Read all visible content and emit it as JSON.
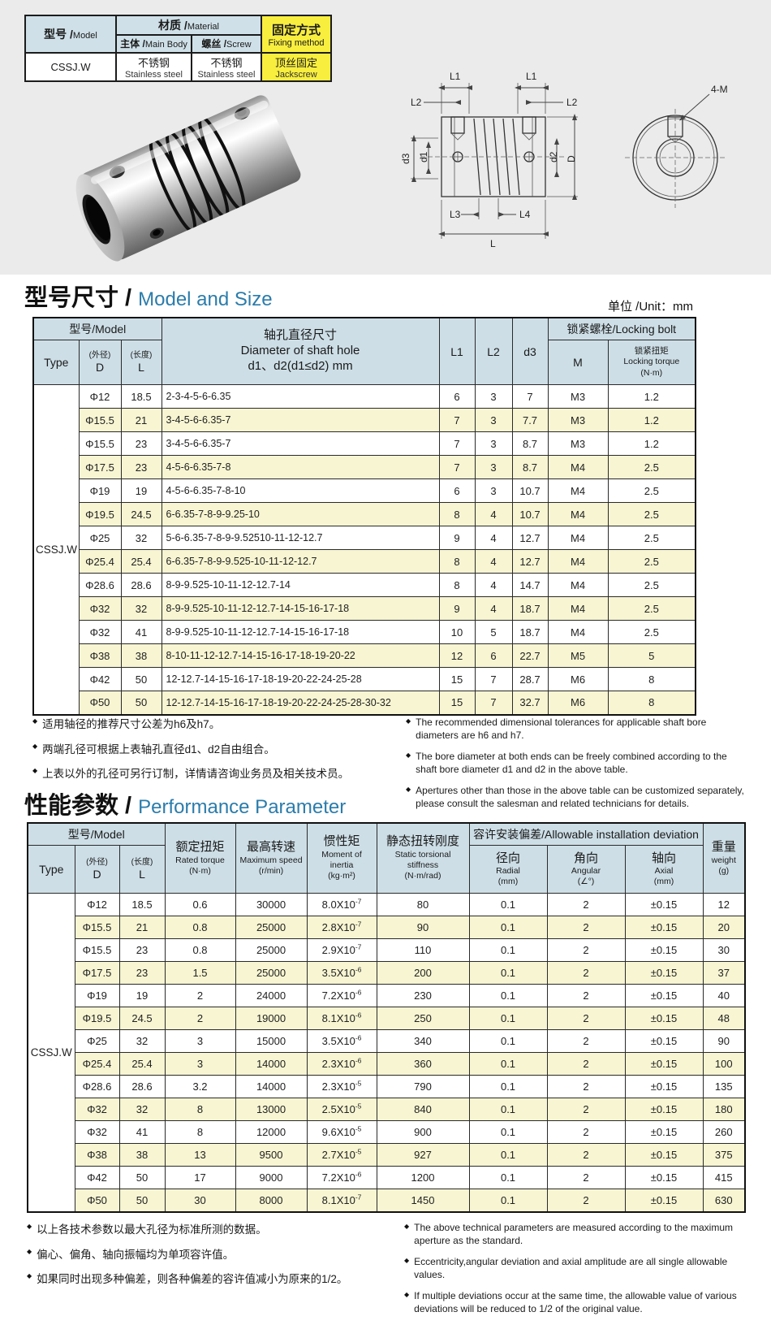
{
  "colors": {
    "top_band_bg": "#ebebeb",
    "table_header_bg": "#cddee6",
    "row_alt_bg": "#f7f5d2",
    "highlight_yellow": "#f8ee3e",
    "title_accent_blue": "#2b7cab"
  },
  "spec_table": {
    "model_header_zh": "型号 /",
    "model_header_en": "Model",
    "material_header_zh": "材质 /",
    "material_header_en": "Material",
    "main_body_header_zh": "主体 /",
    "main_body_header_en": "Main Body",
    "screw_header_zh": "螺丝 /",
    "screw_header_en": "Screw",
    "fixing_header_zh": "固定方式",
    "fixing_header_en": "Fixing method",
    "model_value": "CSSJ.W",
    "main_body_zh": "不锈钢",
    "main_body_en": "Stainless steel",
    "screw_zh": "不锈钢",
    "screw_en": "Stainless steel",
    "fixing_zh": "顶丝固定",
    "fixing_en": "Jackscrew"
  },
  "drawing": {
    "front_labels": {
      "l1_left": "L1",
      "l2_left": "L2",
      "l1_right": "L1",
      "l2_right": "L2",
      "d3": "d3",
      "d1": "d1",
      "d2": "d2",
      "d_outer": "D",
      "l3": "L3",
      "l4": "L4",
      "l_total": "L"
    },
    "side_label": "4-M"
  },
  "size_section": {
    "title_zh": "型号尺寸 /",
    "title_en": "Model and Size",
    "unit": "单位 /Unit：mm",
    "header": {
      "model_group": "型号/Model",
      "type": "Type",
      "d_sub": "(外径)",
      "d": "D",
      "l_sub": "(长度)",
      "l": "L",
      "bore_zh": "轴孔直径尺寸",
      "bore_en": "Diameter of shaft hole",
      "bore_range": "d1、d2(d1≤d2) mm",
      "l1": "L1",
      "l2": "L2",
      "d3": "d3",
      "locking_group": "锁紧螺栓/Locking bolt",
      "m": "M",
      "torque_zh": "锁紧扭矩",
      "torque_en": "Locking torque",
      "torque_unit": "(N·m)"
    },
    "type_value": "CSSJ.W",
    "col_keys": [
      "d",
      "l",
      "bore",
      "l1",
      "l2",
      "d3",
      "m",
      "torque"
    ],
    "rows": [
      {
        "d": "Φ12",
        "l": "18.5",
        "bore": "2-3-4-5-6-6.35",
        "l1": "6",
        "l2": "3",
        "d3": "7",
        "m": "M3",
        "torque": "1.2"
      },
      {
        "d": "Φ15.5",
        "l": "21",
        "bore": "3-4-5-6-6.35-7",
        "l1": "7",
        "l2": "3",
        "d3": "7.7",
        "m": "M3",
        "torque": "1.2"
      },
      {
        "d": "Φ15.5",
        "l": "23",
        "bore": "3-4-5-6-6.35-7",
        "l1": "7",
        "l2": "3",
        "d3": "8.7",
        "m": "M3",
        "torque": "1.2"
      },
      {
        "d": "Φ17.5",
        "l": "23",
        "bore": "4-5-6-6.35-7-8",
        "l1": "7",
        "l2": "3",
        "d3": "8.7",
        "m": "M4",
        "torque": "2.5"
      },
      {
        "d": "Φ19",
        "l": "19",
        "bore": "4-5-6-6.35-7-8-10",
        "l1": "6",
        "l2": "3",
        "d3": "10.7",
        "m": "M4",
        "torque": "2.5"
      },
      {
        "d": "Φ19.5",
        "l": "24.5",
        "bore": "6-6.35-7-8-9-9.25-10",
        "l1": "8",
        "l2": "4",
        "d3": "10.7",
        "m": "M4",
        "torque": "2.5"
      },
      {
        "d": "Φ25",
        "l": "32",
        "bore": "5-6-6.35-7-8-9-9.52510-11-12-12.7",
        "l1": "9",
        "l2": "4",
        "d3": "12.7",
        "m": "M4",
        "torque": "2.5"
      },
      {
        "d": "Φ25.4",
        "l": "25.4",
        "bore": "6-6.35-7-8-9-9.525-10-11-12-12.7",
        "l1": "8",
        "l2": "4",
        "d3": "12.7",
        "m": "M4",
        "torque": "2.5"
      },
      {
        "d": "Φ28.6",
        "l": "28.6",
        "bore": "8-9-9.525-10-11-12-12.7-14",
        "l1": "8",
        "l2": "4",
        "d3": "14.7",
        "m": "M4",
        "torque": "2.5"
      },
      {
        "d": "Φ32",
        "l": "32",
        "bore": "8-9-9.525-10-11-12-12.7-14-15-16-17-18",
        "l1": "9",
        "l2": "4",
        "d3": "18.7",
        "m": "M4",
        "torque": "2.5"
      },
      {
        "d": "Φ32",
        "l": "41",
        "bore": "8-9-9.525-10-11-12-12.7-14-15-16-17-18",
        "l1": "10",
        "l2": "5",
        "d3": "18.7",
        "m": "M4",
        "torque": "2.5"
      },
      {
        "d": "Φ38",
        "l": "38",
        "bore": "8-10-11-12-12.7-14-15-16-17-18-19-20-22",
        "l1": "12",
        "l2": "6",
        "d3": "22.7",
        "m": "M5",
        "torque": "5"
      },
      {
        "d": "Φ42",
        "l": "50",
        "bore": "12-12.7-14-15-16-17-18-19-20-22-24-25-28",
        "l1": "15",
        "l2": "7",
        "d3": "28.7",
        "m": "M6",
        "torque": "8"
      },
      {
        "d": "Φ50",
        "l": "50",
        "bore": "12-12.7-14-15-16-17-18-19-20-22-24-25-28-30-32",
        "l1": "15",
        "l2": "7",
        "d3": "32.7",
        "m": "M6",
        "torque": "8"
      }
    ],
    "notes_zh": [
      "适用轴径的推荐尺寸公差为h6及h7。",
      "两端孔径可根据上表轴孔直径d1、d2自由组合。",
      "上表以外的孔径可另行订制，详情请咨询业务员及相关技术员。"
    ],
    "notes_en": [
      "The recommended dimensional tolerances for applicable shaft bore diameters are h6 and h7.",
      "The bore diameter at both ends can be freely combined according to the shaft bore diameter d1 and d2 in the above table.",
      "Apertures other than those in the above table can be customized separately, please consult the salesman and related technicians for details."
    ]
  },
  "perf_section": {
    "title_zh": "性能参数 /",
    "title_en": "Performance Parameter",
    "header": {
      "model_group": "型号/Model",
      "type": "Type",
      "d_sub": "(外径)",
      "d": "D",
      "l_sub": "(长度)",
      "l": "L",
      "torque_zh": "额定扭矩",
      "torque_en": "Rated torque",
      "torque_unit": "(N·m)",
      "speed_zh": "最高转速",
      "speed_en": "Maximum speed",
      "speed_unit": "(r/min)",
      "inertia_zh": "惯性矩",
      "inertia_en": "Moment of inertia",
      "inertia_unit": "(kg·m²)",
      "stiffness_zh": "静态扭转刚度",
      "stiffness_en": "Static torsional stiffness",
      "stiffness_unit": "(N·m/rad)",
      "deviation_group": "容许安装偏差/Allowable installation deviation",
      "radial_zh": "径向",
      "radial_en": "Radial",
      "radial_unit": "(mm)",
      "angular_zh": "角向",
      "angular_en": "Angular",
      "angular_unit": "(∠°)",
      "axial_zh": "轴向",
      "axial_en": "Axial",
      "axial_unit": "(mm)",
      "weight_zh": "重量",
      "weight_en": "weight",
      "weight_unit": "(g)"
    },
    "type_value": "CSSJ.W",
    "col_keys": [
      "d",
      "l",
      "torque",
      "speed",
      "inertia",
      "stiffness",
      "radial",
      "angular",
      "axial",
      "weight"
    ],
    "rows": [
      {
        "d": "Φ12",
        "l": "18.5",
        "torque": "0.6",
        "speed": "30000",
        "inertia": [
          "8.0X10",
          "-7"
        ],
        "stiffness": "80",
        "radial": "0.1",
        "angular": "2",
        "axial": "±0.15",
        "weight": "12"
      },
      {
        "d": "Φ15.5",
        "l": "21",
        "torque": "0.8",
        "speed": "25000",
        "inertia": [
          "2.8X10",
          "-7"
        ],
        "stiffness": "90",
        "radial": "0.1",
        "angular": "2",
        "axial": "±0.15",
        "weight": "20"
      },
      {
        "d": "Φ15.5",
        "l": "23",
        "torque": "0.8",
        "speed": "25000",
        "inertia": [
          "2.9X10",
          "-7"
        ],
        "stiffness": "110",
        "radial": "0.1",
        "angular": "2",
        "axial": "±0.15",
        "weight": "30"
      },
      {
        "d": "Φ17.5",
        "l": "23",
        "torque": "1.5",
        "speed": "25000",
        "inertia": [
          "3.5X10",
          "-6"
        ],
        "stiffness": "200",
        "radial": "0.1",
        "angular": "2",
        "axial": "±0.15",
        "weight": "37"
      },
      {
        "d": "Φ19",
        "l": "19",
        "torque": "2",
        "speed": "24000",
        "inertia": [
          "7.2X10",
          "-6"
        ],
        "stiffness": "230",
        "radial": "0.1",
        "angular": "2",
        "axial": "±0.15",
        "weight": "40"
      },
      {
        "d": "Φ19.5",
        "l": "24.5",
        "torque": "2",
        "speed": "19000",
        "inertia": [
          "8.1X10",
          "-6"
        ],
        "stiffness": "250",
        "radial": "0.1",
        "angular": "2",
        "axial": "±0.15",
        "weight": "48"
      },
      {
        "d": "Φ25",
        "l": "32",
        "torque": "3",
        "speed": "15000",
        "inertia": [
          "3.5X10",
          "-6"
        ],
        "stiffness": "340",
        "radial": "0.1",
        "angular": "2",
        "axial": "±0.15",
        "weight": "90"
      },
      {
        "d": "Φ25.4",
        "l": "25.4",
        "torque": "3",
        "speed": "14000",
        "inertia": [
          "2.3X10",
          "-6"
        ],
        "stiffness": "360",
        "radial": "0.1",
        "angular": "2",
        "axial": "±0.15",
        "weight": "100"
      },
      {
        "d": "Φ28.6",
        "l": "28.6",
        "torque": "3.2",
        "speed": "14000",
        "inertia": [
          "2.3X10",
          "-5"
        ],
        "stiffness": "790",
        "radial": "0.1",
        "angular": "2",
        "axial": "±0.15",
        "weight": "135"
      },
      {
        "d": "Φ32",
        "l": "32",
        "torque": "8",
        "speed": "13000",
        "inertia": [
          "2.5X10",
          "-5"
        ],
        "stiffness": "840",
        "radial": "0.1",
        "angular": "2",
        "axial": "±0.15",
        "weight": "180"
      },
      {
        "d": "Φ32",
        "l": "41",
        "torque": "8",
        "speed": "12000",
        "inertia": [
          "9.6X10",
          "-5"
        ],
        "stiffness": "900",
        "radial": "0.1",
        "angular": "2",
        "axial": "±0.15",
        "weight": "260"
      },
      {
        "d": "Φ38",
        "l": "38",
        "torque": "13",
        "speed": "9500",
        "inertia": [
          "2.7X10",
          "-5"
        ],
        "stiffness": "927",
        "radial": "0.1",
        "angular": "2",
        "axial": "±0.15",
        "weight": "375"
      },
      {
        "d": "Φ42",
        "l": "50",
        "torque": "17",
        "speed": "9000",
        "inertia": [
          "7.2X10",
          "-6"
        ],
        "stiffness": "1200",
        "radial": "0.1",
        "angular": "2",
        "axial": "±0.15",
        "weight": "415"
      },
      {
        "d": "Φ50",
        "l": "50",
        "torque": "30",
        "speed": "8000",
        "inertia": [
          "8.1X10",
          "-7"
        ],
        "stiffness": "1450",
        "radial": "0.1",
        "angular": "2",
        "axial": "±0.15",
        "weight": "630"
      }
    ],
    "notes_zh": [
      "以上各技术参数以最大孔径为标准所测的数据。",
      "偏心、偏角、轴向振幅均为单项容许值。",
      "如果同时出现多种偏差，则各种偏差的容许值减小为原来的1/2。"
    ],
    "notes_en": [
      "The above technical parameters are measured according to the maximum aperture as the standard.",
      "Eccentricity,angular deviation and axial amplitude are all single allowable values.",
      "If multiple deviations occur at the same time, the allowable value of various deviations will be reduced to 1/2 of the original value."
    ]
  }
}
